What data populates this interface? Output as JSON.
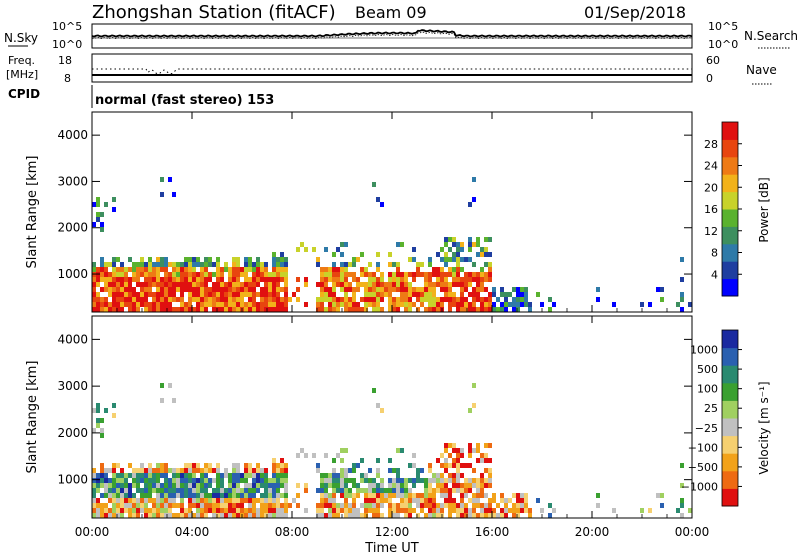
{
  "header": {
    "station": "Zhongshan Station (fitACF)",
    "beam": "Beam 09",
    "date": "01/Sep/2018"
  },
  "noise_panel": {
    "left_label": "N.Sky",
    "right_label": "N.Search",
    "ticks_left": [
      "10^5",
      "10^0"
    ],
    "ticks_right": [
      "10^5",
      "10^0"
    ]
  },
  "freq_panel": {
    "left_label_1": "Freq.",
    "left_label_2": "[MHz]",
    "right_label": "Nave",
    "ticks_left": [
      "18",
      "8"
    ],
    "ticks_right": [
      "60",
      "0"
    ]
  },
  "cpid": {
    "label": "CPID",
    "value": "normal (fast stereo) 153"
  },
  "colors": {
    "power": [
      "#0000ff",
      "#1f3ea0",
      "#2e7aa8",
      "#3d8f5f",
      "#5ab22e",
      "#c8d22a",
      "#f2b21a",
      "#ee7a15",
      "#e8450f",
      "#e01010"
    ],
    "velocity": [
      "#e01010",
      "#ee6a12",
      "#f2a21a",
      "#f6d070",
      "#c0c0c0",
      "#a0d060",
      "#3aa030",
      "#2a8a70",
      "#2a60b0",
      "#1a2aa0"
    ]
  },
  "chart_data": [
    {
      "type": "heatmap",
      "title": "Power",
      "ylabel": "Slant Range [km]",
      "xlabel": "Time UT",
      "x_ticks": [
        "00:00",
        "04:00",
        "08:00",
        "12:00",
        "16:00",
        "20:00",
        "00:00"
      ],
      "y_ticks": [
        "1000",
        "2000",
        "3000",
        "4000"
      ],
      "xlim": [
        0,
        24
      ],
      "ylim": [
        180,
        4500
      ],
      "colorbar": {
        "label": "Power [dB]",
        "range": [
          0,
          32
        ],
        "ticks": [
          "4",
          "8",
          "12",
          "16",
          "20",
          "24",
          "28"
        ]
      }
    },
    {
      "type": "heatmap",
      "title": "Velocity",
      "ylabel": "Slant Range [km]",
      "xlabel": "Time UT",
      "x_ticks": [
        "00:00",
        "04:00",
        "08:00",
        "12:00",
        "16:00",
        "20:00",
        "00:00"
      ],
      "y_ticks": [
        "1000",
        "2000",
        "3000",
        "4000"
      ],
      "xlim": [
        0,
        24
      ],
      "ylim": [
        180,
        4500
      ],
      "colorbar": {
        "label": "Velocity [m s⁻¹]",
        "ticks": [
          "1000",
          "500",
          "100",
          "25",
          "−25",
          "−100",
          "−500",
          "−1000"
        ]
      }
    }
  ]
}
